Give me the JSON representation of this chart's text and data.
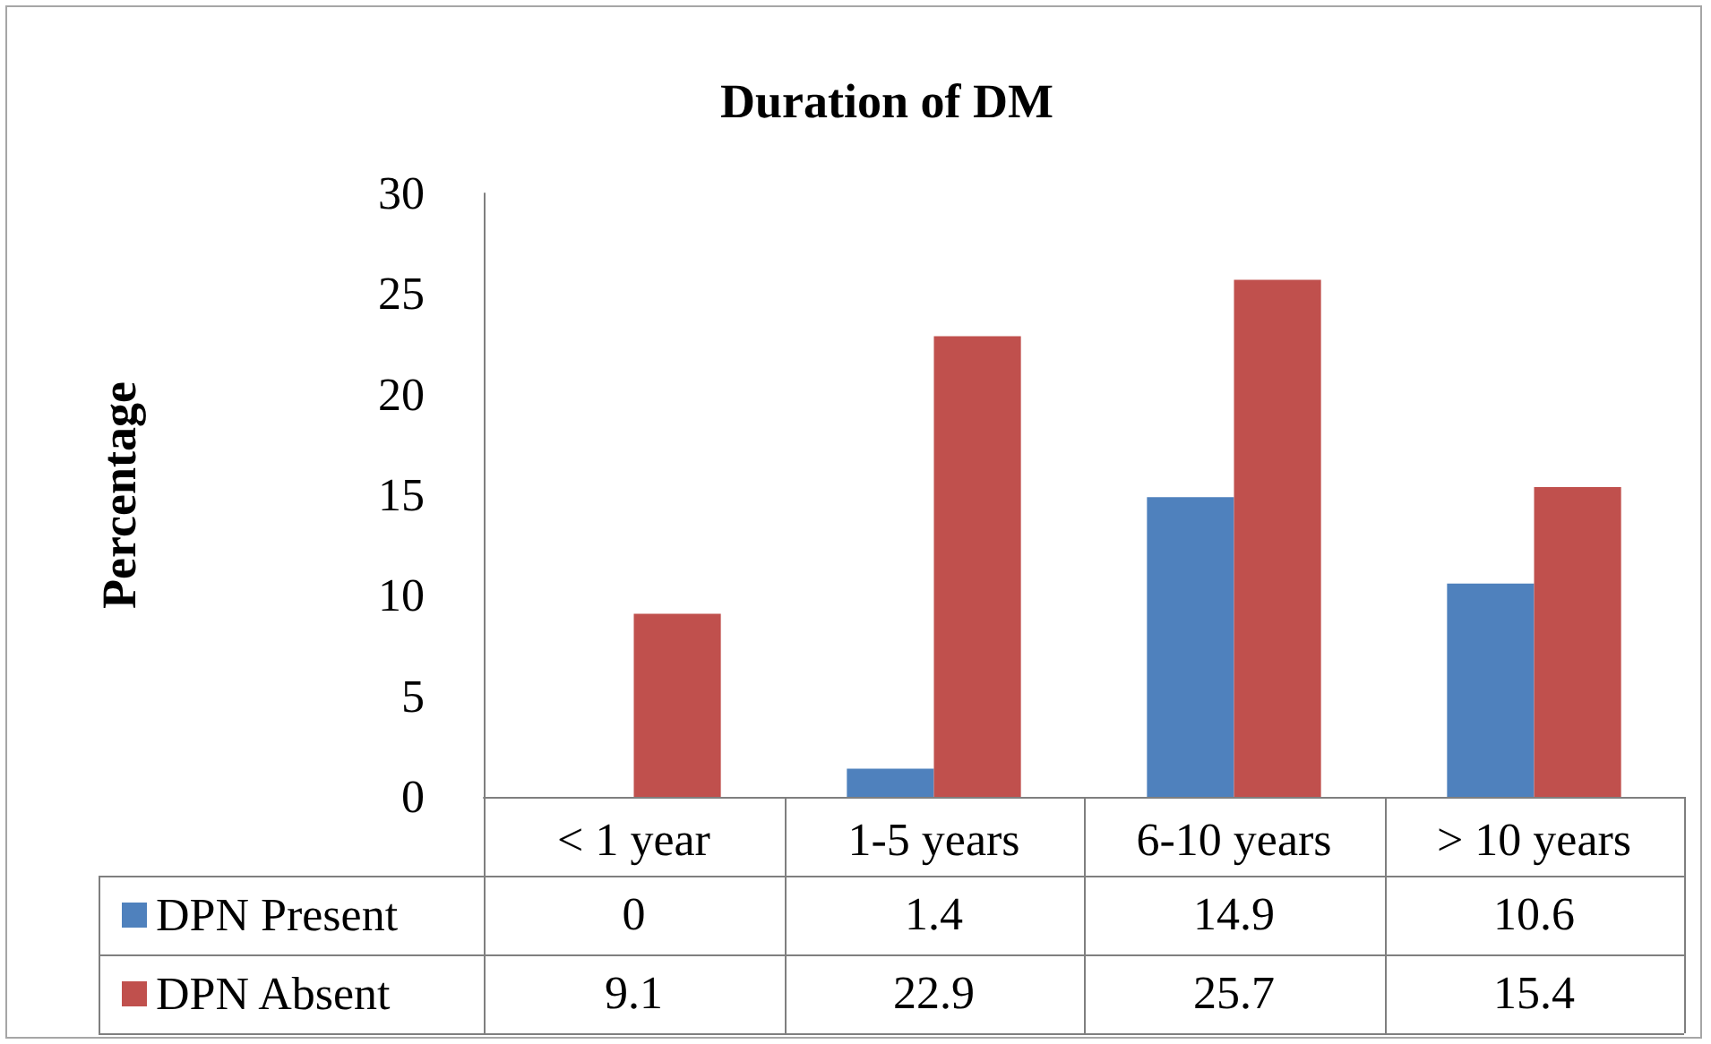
{
  "chart_data": {
    "type": "bar",
    "title": "Duration of DM",
    "ylabel": "Percentage",
    "categories": [
      "< 1 year",
      "1-5 years",
      "6-10 years",
      "> 10 years"
    ],
    "series": [
      {
        "name": "DPN Present",
        "color": "#4f81bd",
        "values": [
          0,
          1.4,
          14.9,
          10.6
        ]
      },
      {
        "name": "DPN Absent",
        "color": "#c0504d",
        "values": [
          9.1,
          22.9,
          25.7,
          15.4
        ]
      }
    ],
    "ylim": [
      0,
      30
    ],
    "yticks": [
      0,
      5,
      10,
      15,
      20,
      25,
      30
    ],
    "grid": false,
    "legend": "bottom left",
    "data_labels": true
  }
}
